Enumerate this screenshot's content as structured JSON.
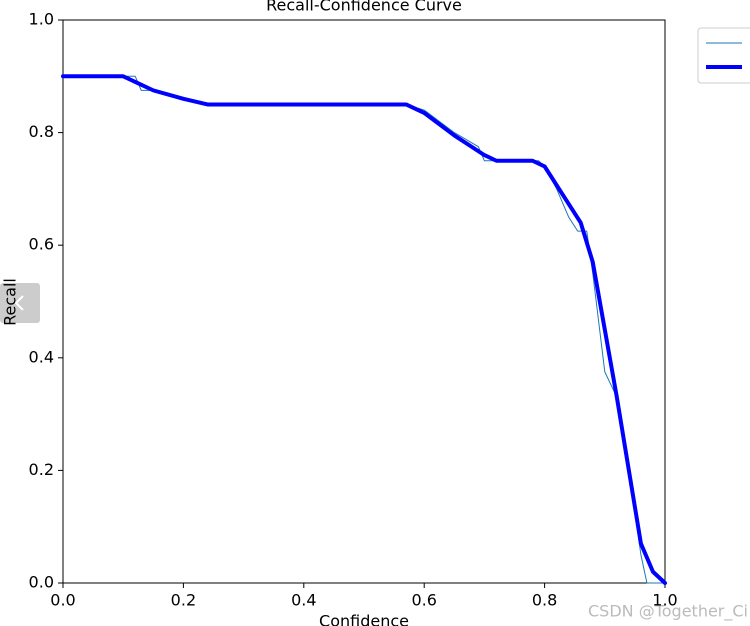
{
  "chart_data": {
    "type": "line",
    "title": "Recall-Confidence Curve",
    "x_label": "Confidence",
    "y_label": "Recall",
    "watermark": "CSDN @Together_Ci",
    "xlim": [
      0,
      1
    ],
    "ylim": [
      0,
      1
    ],
    "xticks": [
      {
        "value": 0,
        "label": "0.0"
      },
      0.2,
      0.4,
      0.6,
      0.8,
      {
        "value": 1,
        "label": "1.0"
      }
    ],
    "yticks": [
      {
        "value": 0,
        "label": "0.0"
      },
      0.2,
      0.4,
      0.6,
      0.8,
      {
        "value": 1,
        "label": "1.0"
      }
    ],
    "grid": false,
    "legend": "upper right outside",
    "series": [
      {
        "color": "#1f77b4",
        "width": 1,
        "x": [
          0,
          0.1,
          0.12,
          0.13,
          0.15,
          0.2,
          0.24,
          0.57,
          0.6,
          0.65,
          0.69,
          0.7,
          0.72,
          0.79,
          0.8,
          0.82,
          0.84,
          0.855,
          0.87,
          0.88,
          0.9,
          0.92,
          0.93,
          0.95,
          0.96,
          0.97,
          0.98,
          1.0
        ],
        "values": [
          0.9,
          0.9,
          0.9,
          0.875,
          0.875,
          0.86,
          0.85,
          0.85,
          0.84,
          0.8,
          0.775,
          0.75,
          0.75,
          0.75,
          0.74,
          0.7,
          0.65,
          0.625,
          0.625,
          0.55,
          0.375,
          0.33,
          0.25,
          0.125,
          0.05,
          0.0,
          0.0,
          0.0
        ]
      },
      {
        "color": "#0000ff",
        "width": 4,
        "x": [
          0,
          0.1,
          0.12,
          0.15,
          0.2,
          0.24,
          0.3,
          0.57,
          0.6,
          0.65,
          0.7,
          0.72,
          0.78,
          0.8,
          0.83,
          0.86,
          0.88,
          0.9,
          0.92,
          0.94,
          0.96,
          0.98,
          1.0
        ],
        "values": [
          0.9,
          0.9,
          0.89,
          0.875,
          0.86,
          0.85,
          0.85,
          0.85,
          0.835,
          0.795,
          0.76,
          0.75,
          0.75,
          0.74,
          0.69,
          0.64,
          0.57,
          0.45,
          0.33,
          0.2,
          0.07,
          0.02,
          0.0
        ]
      }
    ]
  }
}
